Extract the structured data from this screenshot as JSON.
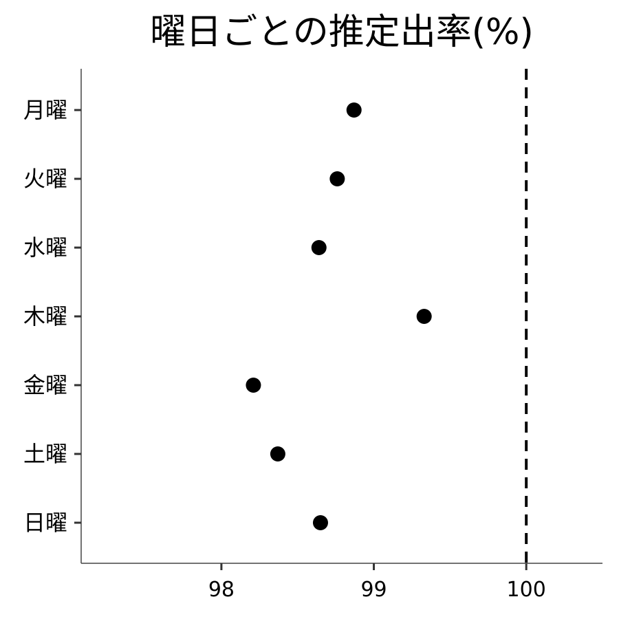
{
  "chart_data": {
    "type": "scatter",
    "title": "曜日ごとの推定出率(%)",
    "xlabel": "",
    "ylabel": "",
    "categories": [
      "月曜",
      "火曜",
      "水曜",
      "木曜",
      "金曜",
      "土曜",
      "日曜"
    ],
    "values": [
      98.87,
      98.76,
      98.64,
      99.33,
      98.21,
      98.37,
      98.65
    ],
    "xlim": [
      97.08,
      100.5
    ],
    "xticks": [
      "98",
      "99",
      "100"
    ],
    "reference_line": {
      "x": 100,
      "style": "dashed"
    },
    "grid": false,
    "legend": "none",
    "colors": {
      "point": "#000000",
      "axis": "#444444",
      "reference": "#000000"
    }
  }
}
